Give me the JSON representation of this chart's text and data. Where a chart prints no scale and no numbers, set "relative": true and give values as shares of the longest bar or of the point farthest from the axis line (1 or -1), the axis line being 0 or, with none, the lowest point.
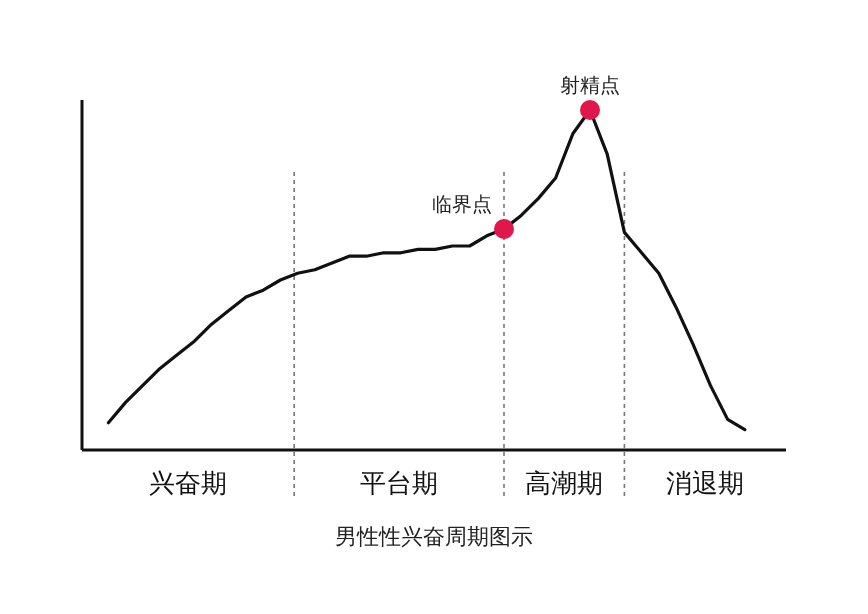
{
  "chart_data": {
    "type": "line",
    "title": "男性性兴奋周期图示",
    "relative": true,
    "categories": [
      null,
      null,
      null,
      null,
      null,
      null,
      null,
      null,
      null,
      null,
      null,
      null,
      null,
      null,
      null,
      null,
      null,
      null,
      null,
      null,
      null,
      null,
      null,
      null,
      null,
      null,
      null,
      null,
      null,
      null,
      null,
      null,
      null,
      null,
      null,
      null,
      null,
      null
    ],
    "series": [
      {
        "color": "#111111",
        "values": [
          0.08,
          0.14,
          0.19,
          0.24,
          0.28,
          0.32,
          0.37,
          0.41,
          0.45,
          0.47,
          0.5,
          0.52,
          0.53,
          0.55,
          0.57,
          0.57,
          0.58,
          0.58,
          0.59,
          0.59,
          0.6,
          0.6,
          0.63,
          0.65,
          0.69,
          0.74,
          0.8,
          0.93,
          1,
          0.87,
          0.64,
          0.58,
          0.52,
          0.42,
          0.31,
          0.19,
          0.09,
          0.06
        ]
      }
    ],
    "annotations": [
      "兴奋期",
      "平台期",
      "高潮期",
      "消退期",
      "临界点",
      "射精点"
    ]
  }
}
